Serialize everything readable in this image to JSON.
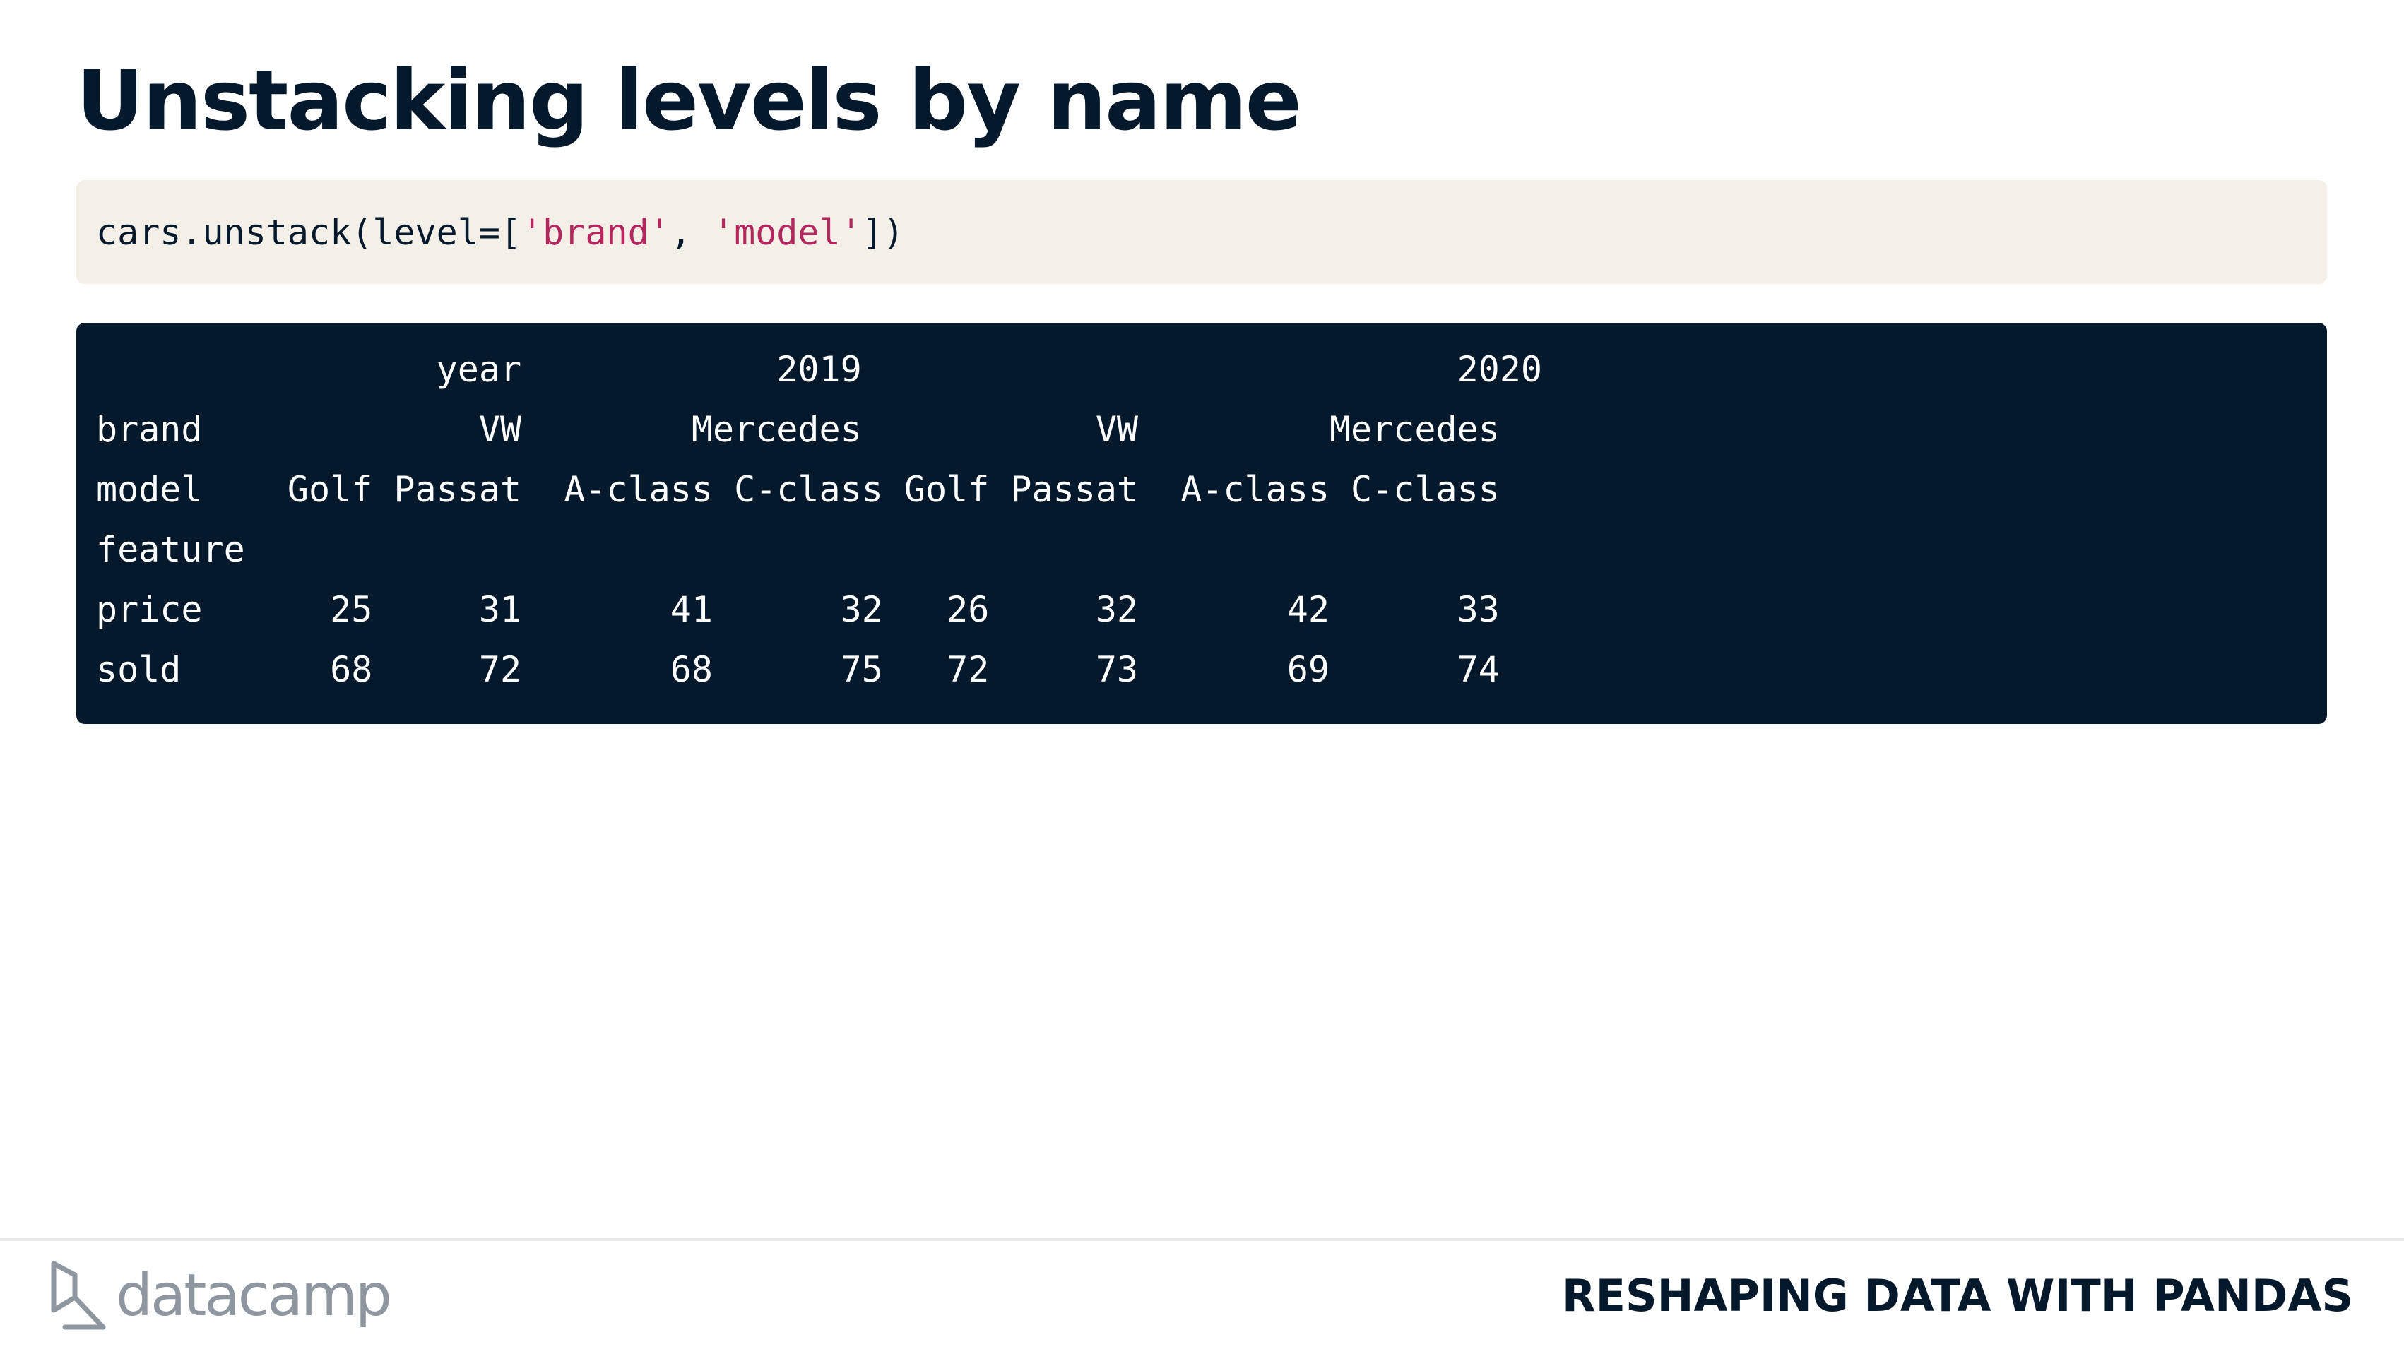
{
  "slide": {
    "title": "Unstacking levels by name"
  },
  "code": {
    "prefix": "cars.unstack(level=[",
    "arg1": "'brand'",
    "sep": ", ",
    "arg2": "'model'",
    "suffix": "])"
  },
  "output": {
    "lines": [
      "                year            2019                            2020",
      "brand             VW        Mercedes           VW         Mercedes",
      "model    Golf Passat  A-class C-class Golf Passat  A-class C-class",
      "feature",
      "price      25     31       41      32   26     32       42      33",
      "sold       68     72       68      75   72     73       69      74"
    ]
  },
  "footer": {
    "logo_text": "datacamp",
    "course_name": "RESHAPING DATA WITH PANDAS"
  },
  "colors": {
    "navy": "#05192D",
    "code_bg": "#F4F0E8",
    "string": "#B4275E",
    "logo_gray": "#8E969F"
  },
  "icons": {
    "logo_mark": "datacamp-logo-icon"
  }
}
